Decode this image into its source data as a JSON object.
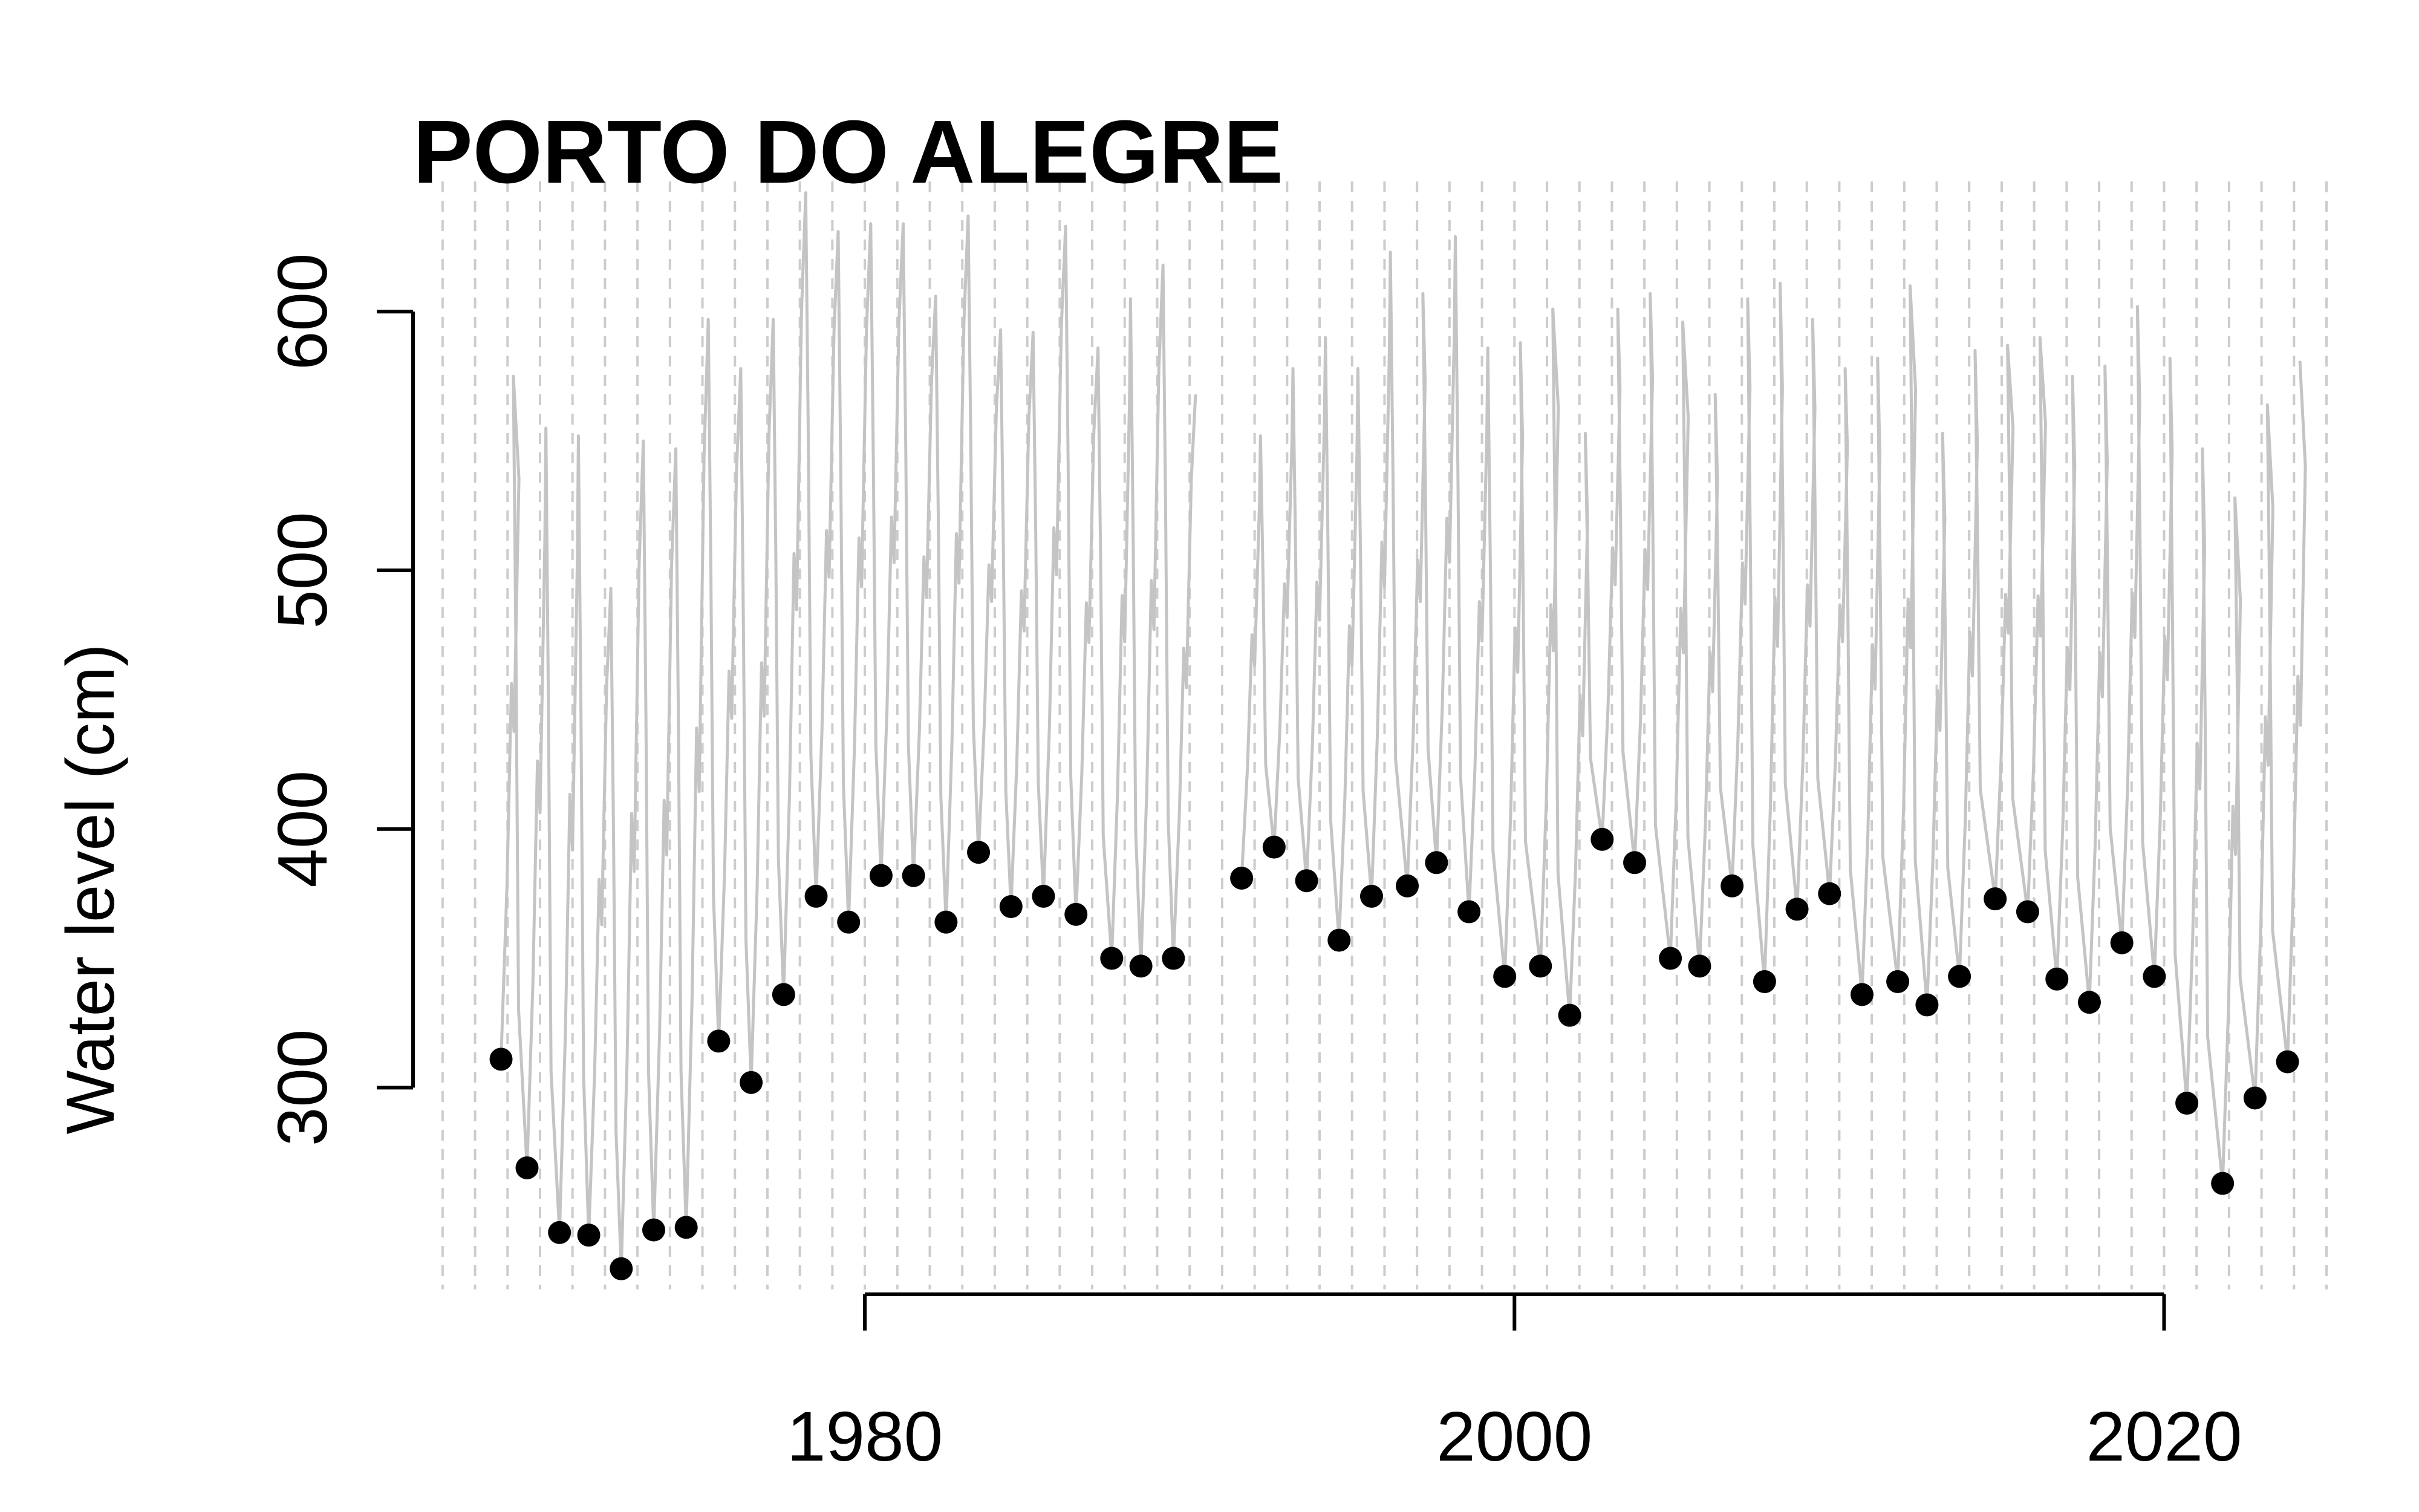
{
  "chart_data": {
    "type": "line",
    "title": "PORTO DO ALEGRE",
    "xlabel": "",
    "ylabel": "Water level (cm)",
    "x_ticks": [
      1980,
      2000,
      2020
    ],
    "y_ticks": [
      300,
      400,
      500,
      600
    ],
    "xlim": [
      1966.5,
      2025.8
    ],
    "ylim": [
      222,
      648
    ],
    "grid": "vertical dashed lines at each year",
    "colors": {
      "series_line": "#c4c4c4",
      "points": "#000000",
      "grid": "#cccccc",
      "axis": "#000000"
    },
    "series": [
      {
        "type": "line",
        "peaks": [
          [
            1969,
            575
          ],
          [
            1970,
            555
          ],
          [
            1971,
            552
          ],
          [
            1972,
            493
          ],
          [
            1973,
            550
          ],
          [
            1974,
            547
          ],
          [
            1975,
            597
          ],
          [
            1976,
            578
          ],
          [
            1977,
            597
          ],
          [
            1978,
            646
          ],
          [
            1979,
            631
          ],
          [
            1980,
            634
          ],
          [
            1981,
            634
          ],
          [
            1982,
            606
          ],
          [
            1983,
            637
          ],
          [
            1984,
            593
          ],
          [
            1985,
            592
          ],
          [
            1986,
            633
          ],
          [
            1987,
            586
          ],
          [
            1988,
            605
          ],
          [
            1989,
            618
          ],
          [
            1990,
            568
          ],
          [
            1992,
            552
          ],
          [
            1993,
            578
          ],
          [
            1994,
            590
          ],
          [
            1995,
            578
          ],
          [
            1996,
            623
          ],
          [
            1997,
            607
          ],
          [
            1998,
            629
          ],
          [
            1999,
            586
          ],
          [
            2000,
            588
          ],
          [
            2001,
            601
          ],
          [
            2002,
            553
          ],
          [
            2003,
            601
          ],
          [
            2004,
            607
          ],
          [
            2005,
            596
          ],
          [
            2006,
            568
          ],
          [
            2007,
            605
          ],
          [
            2008,
            611
          ],
          [
            2009,
            597
          ],
          [
            2010,
            578
          ],
          [
            2011,
            582
          ],
          [
            2012,
            610
          ],
          [
            2013,
            553
          ],
          [
            2014,
            585
          ],
          [
            2015,
            587
          ],
          [
            2016,
            590
          ],
          [
            2017,
            575
          ],
          [
            2018,
            579
          ],
          [
            2019,
            602
          ],
          [
            2020,
            582
          ],
          [
            2021,
            547
          ],
          [
            2022,
            528
          ],
          [
            2023,
            564
          ],
          [
            2024,
            581
          ]
        ]
      },
      {
        "type": "scatter",
        "points": [
          [
            1968.8,
            311
          ],
          [
            1969.6,
            269
          ],
          [
            1970.6,
            244
          ],
          [
            1971.5,
            243
          ],
          [
            1972.5,
            230
          ],
          [
            1973.5,
            245
          ],
          [
            1974.5,
            246
          ],
          [
            1975.5,
            318
          ],
          [
            1976.5,
            302
          ],
          [
            1977.5,
            336
          ],
          [
            1978.5,
            374
          ],
          [
            1979.5,
            364
          ],
          [
            1980.5,
            382
          ],
          [
            1981.5,
            382
          ],
          [
            1982.5,
            364
          ],
          [
            1983.5,
            391
          ],
          [
            1984.5,
            370
          ],
          [
            1985.5,
            374
          ],
          [
            1986.5,
            367
          ],
          [
            1987.6,
            350
          ],
          [
            1988.5,
            347
          ],
          [
            1989.5,
            350
          ],
          [
            1991.6,
            381
          ],
          [
            1992.6,
            393
          ],
          [
            1993.6,
            380
          ],
          [
            1994.6,
            357
          ],
          [
            1995.6,
            374
          ],
          [
            1996.7,
            378
          ],
          [
            1997.6,
            387
          ],
          [
            1998.6,
            368
          ],
          [
            1999.7,
            343
          ],
          [
            2000.8,
            347
          ],
          [
            2001.7,
            328
          ],
          [
            2002.7,
            396
          ],
          [
            2003.7,
            387
          ],
          [
            2004.8,
            350
          ],
          [
            2005.7,
            347
          ],
          [
            2006.7,
            378
          ],
          [
            2007.7,
            341
          ],
          [
            2008.7,
            369
          ],
          [
            2009.7,
            375
          ],
          [
            2010.7,
            336
          ],
          [
            2011.8,
            341
          ],
          [
            2012.7,
            332
          ],
          [
            2013.7,
            343
          ],
          [
            2014.8,
            373
          ],
          [
            2015.8,
            368
          ],
          [
            2016.7,
            342
          ],
          [
            2017.7,
            333
          ],
          [
            2018.7,
            356
          ],
          [
            2019.7,
            343
          ],
          [
            2020.7,
            294
          ],
          [
            2021.8,
            263
          ],
          [
            2022.8,
            296
          ],
          [
            2023.8,
            310
          ]
        ]
      }
    ]
  }
}
